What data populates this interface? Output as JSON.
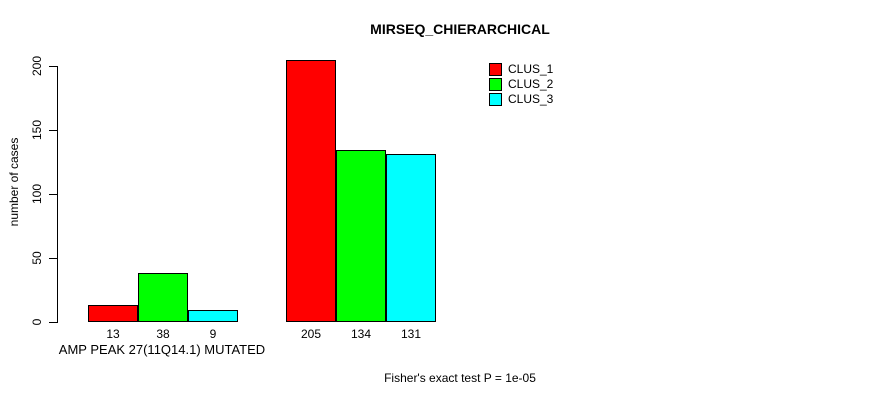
{
  "title": "MIRSEQ_CHIERARCHICAL",
  "footer": "Fisher's exact test P = 1e-05",
  "colors": {
    "background": "#ffffff",
    "axis": "#000000",
    "bar_border": "#000000",
    "clus_1": "#ff0000",
    "clus_2": "#00ff00",
    "clus_3": "#00ffff"
  },
  "chart_data": {
    "type": "bar",
    "title": "MIRSEQ_CHIERARCHICAL",
    "xlabel": "AMP PEAK 27(11Q14.1) MUTATED",
    "ylabel": "number of cases",
    "ylim": [
      0,
      205
    ],
    "yticks": [
      0,
      50,
      100,
      150,
      200
    ],
    "grid": false,
    "legend_position": "top-right",
    "group_labels": [
      "AMP PEAK 27(11Q14.1) MUTATED",
      ""
    ],
    "series": [
      {
        "name": "CLUS_1",
        "color": "#ff0000",
        "values": [
          13,
          205
        ]
      },
      {
        "name": "CLUS_2",
        "color": "#00ff00",
        "values": [
          38,
          134
        ]
      },
      {
        "name": "CLUS_3",
        "color": "#00ffff",
        "values": [
          9,
          131
        ]
      }
    ],
    "bar_value_labels": [
      [
        13,
        38,
        9
      ],
      [
        205,
        134,
        131
      ]
    ],
    "annotation": "Fisher's exact test P = 1e-05"
  }
}
